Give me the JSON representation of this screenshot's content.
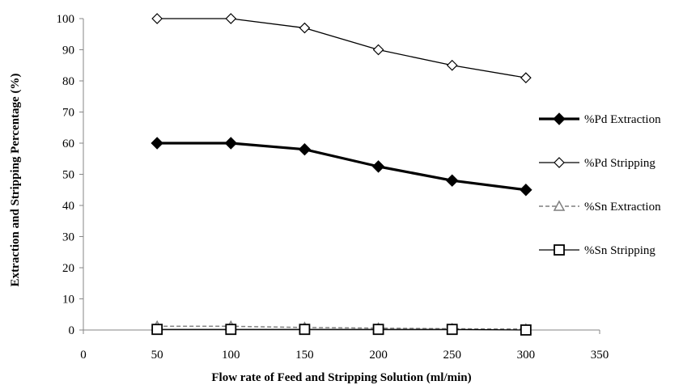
{
  "chart_data": {
    "type": "line",
    "xlabel": "Flow rate of Feed and Stripping Solution (ml/min)",
    "ylabel": "Extraction and Stripping Percentage (%)",
    "xlim": [
      0,
      350
    ],
    "ylim": [
      0,
      100
    ],
    "x_ticks": [
      0,
      50,
      100,
      150,
      200,
      250,
      300,
      350
    ],
    "y_ticks": [
      0,
      10,
      20,
      30,
      40,
      50,
      60,
      70,
      80,
      90,
      100
    ],
    "grid": false,
    "legend_position": "right",
    "x": [
      50,
      100,
      150,
      200,
      250,
      300
    ],
    "series": [
      {
        "name": "%Pd Extraction",
        "values": [
          60,
          60,
          58,
          52.5,
          48,
          45
        ],
        "marker": "filled-diamond",
        "line": "solid-thick",
        "color": "#000000"
      },
      {
        "name": "%Pd Stripping",
        "values": [
          100,
          100,
          97,
          90,
          85,
          81
        ],
        "marker": "open-diamond",
        "line": "solid",
        "color": "#000000"
      },
      {
        "name": "%Sn Extraction",
        "values": [
          1.2,
          1.2,
          0.8,
          0.6,
          0.4,
          0.3
        ],
        "marker": "open-triangle",
        "line": "dashed",
        "color": "#7f7f7f"
      },
      {
        "name": "%Sn Stripping",
        "values": [
          0.2,
          0.2,
          0.2,
          0.2,
          0.2,
          0
        ],
        "marker": "open-square",
        "line": "solid",
        "color": "#000000"
      }
    ]
  }
}
